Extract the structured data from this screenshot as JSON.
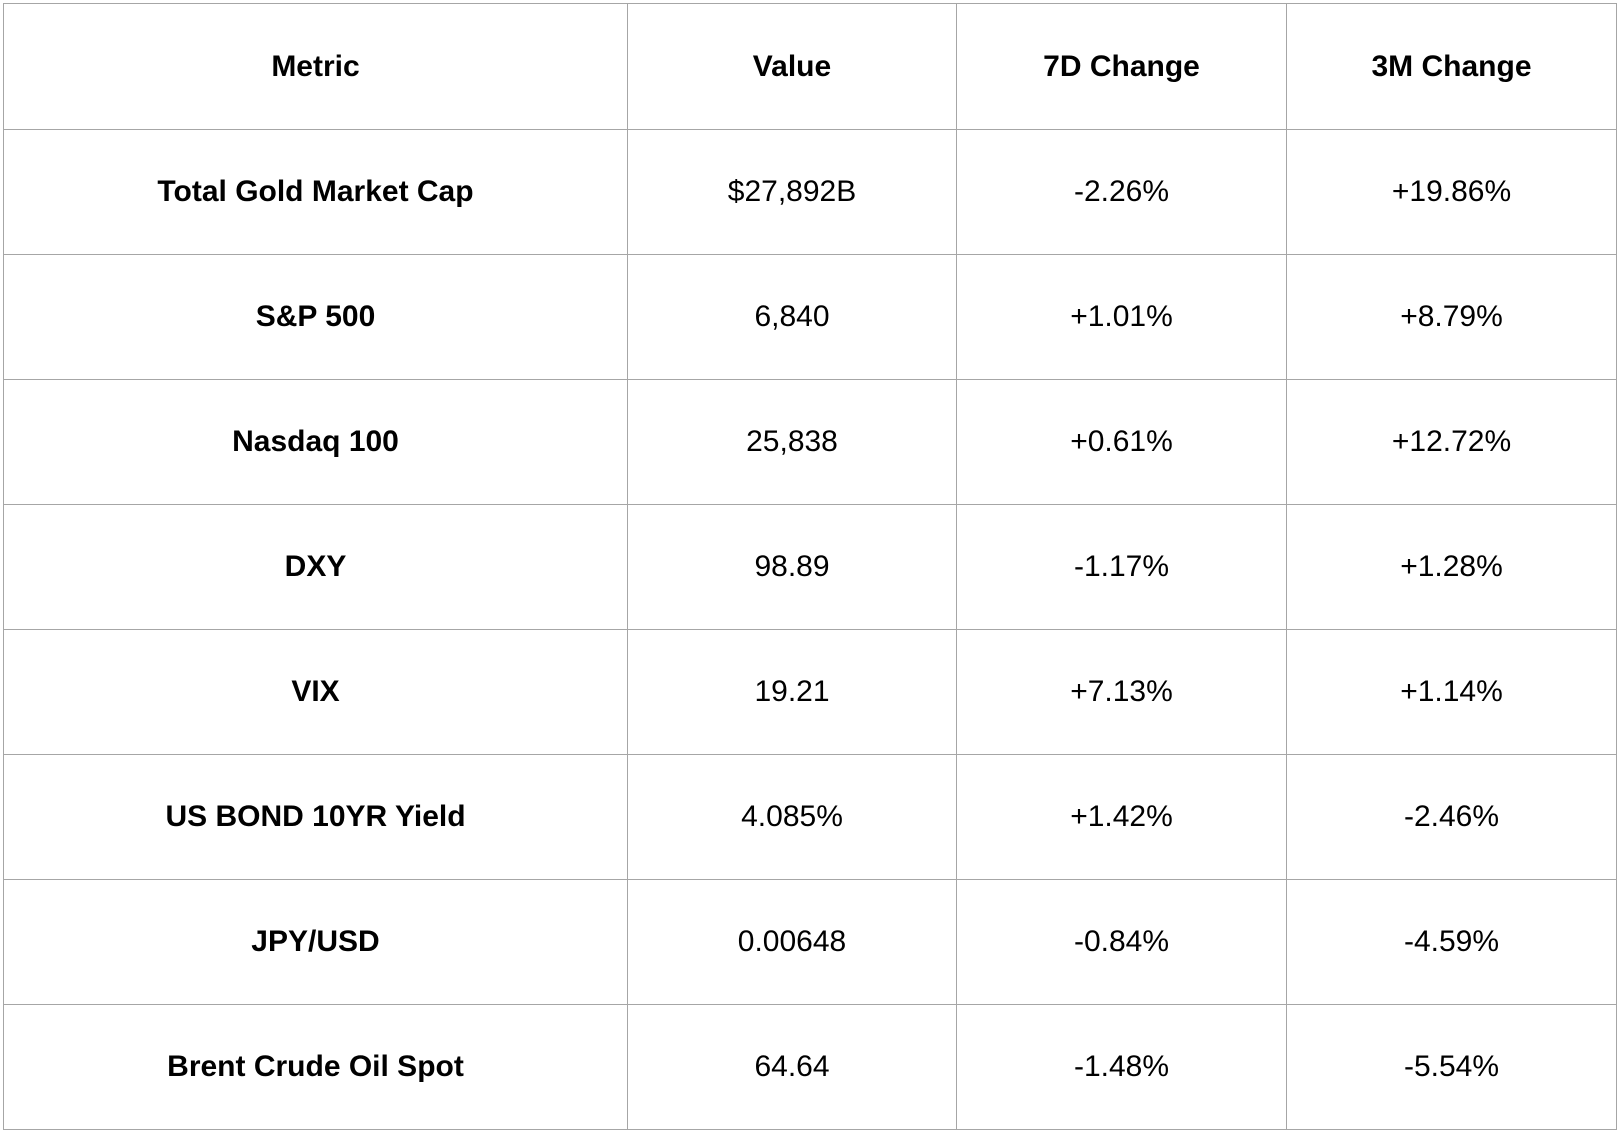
{
  "table": {
    "columns": [
      "Metric",
      "Value",
      "7D Change",
      "3M Change"
    ],
    "rows": [
      {
        "metric": "Total Gold Market Cap",
        "value": "$27,892B",
        "change_7d": "-2.26%",
        "change_3m": "+19.86%"
      },
      {
        "metric": "S&P 500",
        "value": "6,840",
        "change_7d": "+1.01%",
        "change_3m": "+8.79%"
      },
      {
        "metric": "Nasdaq 100",
        "value": "25,838",
        "change_7d": "+0.61%",
        "change_3m": "+12.72%"
      },
      {
        "metric": "DXY",
        "value": "98.89",
        "change_7d": "-1.17%",
        "change_3m": "+1.28%"
      },
      {
        "metric": "VIX",
        "value": "19.21",
        "change_7d": "+7.13%",
        "change_3m": "+1.14%"
      },
      {
        "metric": "US BOND 10YR Yield",
        "value": "4.085%",
        "change_7d": "+1.42%",
        "change_3m": "-2.46%"
      },
      {
        "metric": "JPY/USD",
        "value": "0.00648",
        "change_7d": "-0.84%",
        "change_3m": "-4.59%"
      },
      {
        "metric": "Brent Crude Oil Spot",
        "value": "64.64",
        "change_7d": "-1.48%",
        "change_3m": "-5.54%"
      }
    ],
    "colors": {
      "border": "#a6a6a6",
      "text": "#000000",
      "background": "#ffffff"
    }
  }
}
